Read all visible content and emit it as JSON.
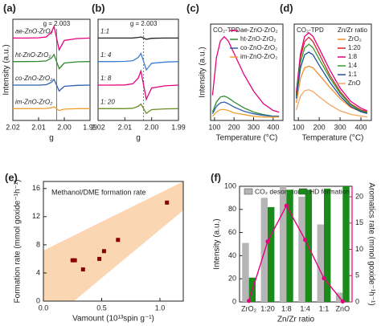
{
  "chart_data": [
    {
      "type": "line",
      "panel_label": "(a)",
      "x_label": "g",
      "y_label": "Intensity (a.u.)",
      "x": [
        2.02,
        2.015,
        2.01,
        2.007,
        2.005,
        2.004,
        2.003,
        2.002,
        2.001,
        2.0,
        1.995,
        1.99
      ],
      "xlim": [
        2.02,
        1.99
      ],
      "xticks": [
        2.02,
        2.01,
        {
          "value": 2.0,
          "label": "2.00"
        },
        1.99
      ],
      "ylim": [
        0.5,
        4.8
      ],
      "legend": "on-curves",
      "annotations": [
        {
          "text": "g = 2.003",
          "x": 2.003
        }
      ],
      "series": [
        {
          "name": "ae-ZnO-ZrO₂",
          "color": "#e6007e",
          "values": [
            4,
            4,
            4.01,
            4.05,
            4.25,
            4.5,
            4,
            3.5,
            3.7,
            3.9,
            3.98,
            4
          ]
        },
        {
          "name": "ht-ZnO-ZrO₂",
          "color": "#2e8b2e",
          "values": [
            3,
            3,
            3.01,
            3.03,
            3.15,
            3.3,
            3,
            2.7,
            2.82,
            2.94,
            2.99,
            3
          ]
        },
        {
          "name": "co-ZnO-ZrO₂",
          "color": "#2f5fb3",
          "values": [
            2,
            2,
            2,
            2.02,
            2.12,
            2.25,
            2,
            1.75,
            1.85,
            1.95,
            1.99,
            2
          ]
        },
        {
          "name": "im-ZnO-ZrO₂",
          "color": "#f0a030",
          "values": [
            1,
            1,
            1,
            1.01,
            1.04,
            1.08,
            1,
            0.92,
            0.95,
            0.98,
            1,
            1
          ]
        }
      ]
    },
    {
      "type": "line",
      "panel_label": "(b)",
      "x_label": "g",
      "x": [
        2.02,
        2.015,
        2.01,
        2.007,
        2.005,
        2.004,
        2.003,
        2.002,
        2.001,
        2.0,
        1.995,
        1.99
      ],
      "xlim": [
        2.02,
        1.99
      ],
      "xticks": [
        2.02,
        2.01,
        {
          "value": 2.0,
          "label": "2.00"
        },
        1.99
      ],
      "ylim": [
        0.5,
        4.8
      ],
      "legend": "on-curves",
      "annotations": [
        {
          "text": "g = 2.003",
          "x": 2.003
        }
      ],
      "series": [
        {
          "name": "1:1",
          "color": "#222222",
          "values": [
            4,
            4,
            4,
            4.005,
            4.03,
            4.05,
            4,
            3.95,
            3.97,
            3.99,
            4,
            4
          ]
        },
        {
          "name": "1: 4",
          "color": "#3a7fd5",
          "values": [
            3,
            3,
            3.01,
            3.04,
            3.18,
            3.35,
            3,
            2.65,
            2.79,
            2.93,
            2.98,
            3
          ]
        },
        {
          "name": "1: 8",
          "color": "#e6007e",
          "values": [
            2,
            2,
            2.01,
            2.06,
            2.3,
            2.6,
            2,
            1.4,
            1.64,
            1.88,
            1.97,
            2
          ]
        },
        {
          "name": "1: 20",
          "color": "#6b8e23",
          "values": [
            1,
            1,
            1,
            1.02,
            1.1,
            1.2,
            1,
            0.8,
            0.88,
            0.96,
            0.99,
            1
          ]
        }
      ]
    },
    {
      "type": "line",
      "panel_label": "(c)",
      "title": "CO₂-TPD",
      "x_label": "Temperature (°C)",
      "y_label": "Intensity (a.u.)",
      "x": [
        90,
        110,
        130,
        150,
        170,
        200,
        250,
        300,
        350,
        400,
        430
      ],
      "xlim": [
        80,
        450
      ],
      "xticks": [
        100,
        200,
        300,
        400
      ],
      "ylim": [
        0,
        1.15
      ],
      "legend": "upper right",
      "series": [
        {
          "name": "ae-ZnO-ZrO₂",
          "color": "#e6007e",
          "values": [
            0.3,
            0.75,
            0.95,
            1.0,
            0.95,
            0.8,
            0.55,
            0.35,
            0.2,
            0.12,
            0.1
          ]
        },
        {
          "name": "ht-ZnO-ZrO₂",
          "color": "#2e8b2e",
          "values": [
            0.1,
            0.22,
            0.28,
            0.29,
            0.27,
            0.22,
            0.15,
            0.1,
            0.07,
            0.05,
            0.05
          ]
        },
        {
          "name": "co-ZnO-ZrO₂",
          "color": "#2f5fb3",
          "values": [
            0.08,
            0.17,
            0.21,
            0.22,
            0.2,
            0.16,
            0.11,
            0.08,
            0.06,
            0.05,
            0.05
          ]
        },
        {
          "name": "im-ZnO-ZrO₂",
          "color": "#f0a030",
          "values": [
            0.05,
            0.1,
            0.13,
            0.13,
            0.12,
            0.09,
            0.07,
            0.05,
            0.04,
            0.04,
            0.04
          ]
        }
      ]
    },
    {
      "type": "line",
      "panel_label": "(d)",
      "title": "CO₂-TPD",
      "legend_title": "Zn/Zr ratio",
      "x_label": "Temperature (°C)",
      "x": [
        90,
        110,
        130,
        150,
        170,
        200,
        250,
        300,
        350,
        400,
        430
      ],
      "xlim": [
        80,
        450
      ],
      "xticks": [
        100,
        200,
        300,
        400
      ],
      "ylim": [
        0,
        1.1
      ],
      "legend": "upper right",
      "series": [
        {
          "name": "ZrO₂",
          "color": "#f28c28",
          "values": [
            0.2,
            0.48,
            0.6,
            0.62,
            0.6,
            0.52,
            0.38,
            0.25,
            0.15,
            0.1,
            0.08
          ]
        },
        {
          "name": "1:20",
          "color": "#d62728",
          "values": [
            0.3,
            0.72,
            0.9,
            0.95,
            0.9,
            0.76,
            0.52,
            0.33,
            0.19,
            0.12,
            0.1
          ]
        },
        {
          "name": "1:8",
          "color": "#e6007e",
          "values": [
            0.32,
            0.76,
            0.96,
            1.0,
            0.96,
            0.82,
            0.58,
            0.37,
            0.22,
            0.14,
            0.11
          ]
        },
        {
          "name": "1:4",
          "color": "#2ca02c",
          "values": [
            0.28,
            0.66,
            0.83,
            0.87,
            0.83,
            0.7,
            0.49,
            0.31,
            0.18,
            0.11,
            0.09
          ]
        },
        {
          "name": "1:1",
          "color": "#1f4e9c",
          "values": [
            0.25,
            0.6,
            0.75,
            0.78,
            0.75,
            0.63,
            0.44,
            0.28,
            0.16,
            0.1,
            0.08
          ]
        },
        {
          "name": "ZnO",
          "color": "#f4a460",
          "values": [
            0.12,
            0.28,
            0.34,
            0.35,
            0.33,
            0.27,
            0.18,
            0.11,
            0.07,
            0.05,
            0.04
          ]
        }
      ]
    },
    {
      "type": "scatter",
      "panel_label": "(e)",
      "title": "Methanol/DME formation rate",
      "x_label": "Vamount (10¹³spin g⁻¹)",
      "y_label": "Formation rate (mmol goxide⁻¹h⁻¹)",
      "x": [
        0.25,
        0.27,
        0.34,
        0.48,
        0.52,
        0.64,
        1.06
      ],
      "values": [
        5.8,
        5.8,
        4.5,
        6.0,
        7.1,
        8.7,
        14.0
      ],
      "color": "#8b0000",
      "xlim": [
        0,
        1.2
      ],
      "xticks": [
        {
          "value": 0,
          "label": "0.0"
        },
        0.5,
        {
          "value": 1,
          "label": "1.0"
        }
      ],
      "ylim": [
        0,
        17
      ],
      "yticks": [
        0,
        4,
        8,
        12,
        16
      ]
    },
    {
      "type": "bar",
      "panel_label": "(f)",
      "x_label": "Zn/Zr ratio",
      "y_label": "Intensity (a.u.)",
      "y2_label": "Aromatics rate (mmol goxide⁻¹h⁻¹)",
      "categories": [
        "ZrO₂",
        "1:20",
        "1:8",
        "1:4",
        "1:1",
        "ZnO"
      ],
      "ylim": [
        0,
        100
      ],
      "yticks": [
        0,
        20,
        40,
        60,
        80,
        100
      ],
      "y2lim": [
        0,
        22
      ],
      "y2ticks": [
        0,
        5,
        10,
        15,
        20
      ],
      "y2_color": "#e6007e",
      "legend": "upper center",
      "series": [
        {
          "name": "CO₂ desorption",
          "color": "#b5b5b5",
          "values": [
            51,
            90,
            100,
            91,
            67,
            8
          ]
        },
        {
          "name": "HD formation",
          "color": "#1a8a1a",
          "values": [
            21,
            82,
            97,
            97,
            98,
            100
          ]
        },
        {
          "type": "line",
          "axis": "y2",
          "color": "#e6007e",
          "values": [
            0.2,
            11.5,
            18.3,
            11.8,
            4.5,
            0.1
          ]
        }
      ]
    }
  ]
}
